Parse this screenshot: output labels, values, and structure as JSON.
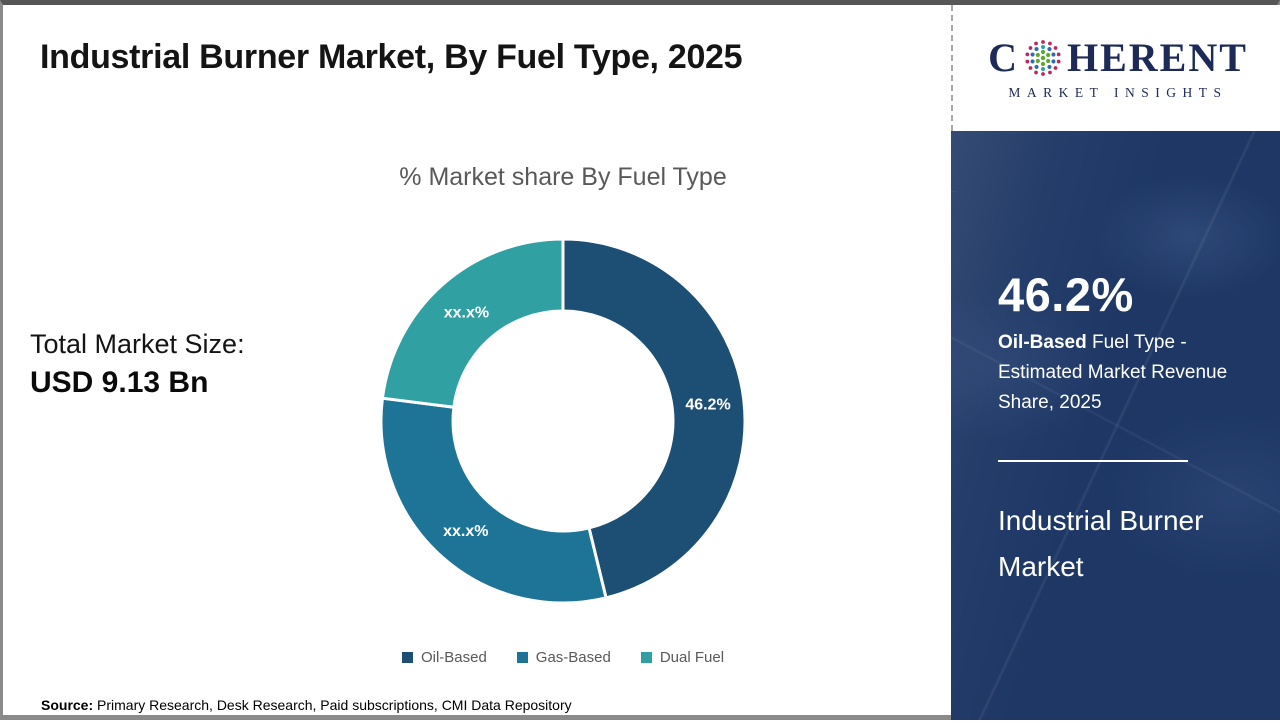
{
  "header": {
    "title": "Industrial Burner Market, By Fuel Type, 2025"
  },
  "logo": {
    "part1": "C",
    "part2": "HERENT",
    "subtitle": "MARKET INSIGHTS",
    "text_color": "#1d2a57",
    "globe_icon": "dotted-globe",
    "globe_colors": {
      "inner": "#5fa832",
      "mid": "#2e6bb0",
      "mid_accent": "#2fa3a3",
      "outer": "#b72a60"
    }
  },
  "left_stat": {
    "label": "Total Market Size:",
    "value": "USD 9.13 Bn"
  },
  "chart_data": {
    "type": "pie",
    "subtype": "donut",
    "title": "% Market share By Fuel Type",
    "start_angle_deg": 0,
    "direction": "clockwise",
    "legend_position": "bottom",
    "series": [
      {
        "name": "Oil-Based",
        "value": 46.2,
        "label": "46.2%",
        "color": "#1d4e74"
      },
      {
        "name": "Gas-Based",
        "value": 30.8,
        "label": "xx.x%",
        "color": "#1e7497"
      },
      {
        "name": "Dual Fuel",
        "value": 23.0,
        "label": "xx.x%",
        "color": "#31a0a2"
      }
    ],
    "note": "Gas-Based and Dual Fuel shares are masked as xx.x% on the chart; numeric values estimated from arc angles"
  },
  "side_panel": {
    "bg": "#1e3765",
    "stat_value": "46.2%",
    "stat_label_bold": "Oil-Based",
    "stat_label_rest": " Fuel Type - Estimated Market Revenue Share, 2025",
    "panel_title": "Industrial Burner Market"
  },
  "source": {
    "prefix": "Source:",
    "text": " Primary Research, Desk Research, Paid subscriptions, CMI Data Repository"
  }
}
